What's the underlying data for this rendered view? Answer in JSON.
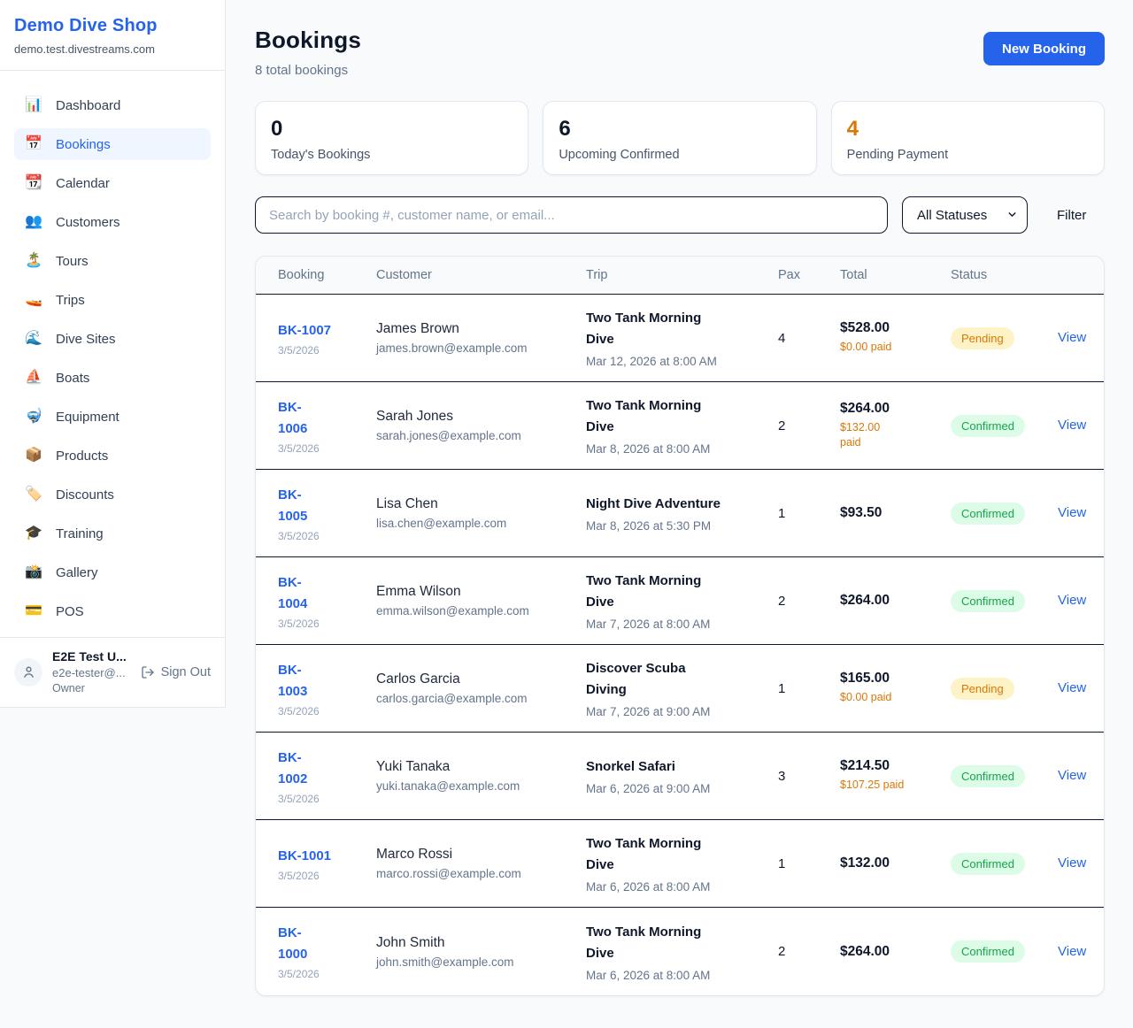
{
  "colors": {
    "accent": "#2563eb",
    "page_bg": "#f8fafc",
    "card_border": "#e2e8f0",
    "row_border": "#0f172a",
    "active_nav_bg": "#eff6ff",
    "pending_bg": "#fef3c7",
    "pending_text": "#d97706",
    "confirmed_bg": "#dcfce7",
    "confirmed_text": "#16a34a",
    "paid_text": "#d97706"
  },
  "sidebar": {
    "shop_name": "Demo Dive Shop",
    "shop_domain": "demo.test.divestreams.com",
    "items": [
      {
        "label": "Dashboard",
        "icon": "📊",
        "icon_name": "bar-chart-icon",
        "active": false
      },
      {
        "label": "Bookings",
        "icon": "📅",
        "icon_name": "calendar-icon",
        "active": true
      },
      {
        "label": "Calendar",
        "icon": "📆",
        "icon_name": "tear-off-calendar-icon",
        "active": false
      },
      {
        "label": "Customers",
        "icon": "👥",
        "icon_name": "people-icon",
        "active": false
      },
      {
        "label": "Tours",
        "icon": "🏝️",
        "icon_name": "island-icon",
        "active": false
      },
      {
        "label": "Trips",
        "icon": "🚤",
        "icon_name": "speedboat-icon",
        "active": false
      },
      {
        "label": "Dive Sites",
        "icon": "🌊",
        "icon_name": "wave-icon",
        "active": false
      },
      {
        "label": "Boats",
        "icon": "⛵",
        "icon_name": "sailboat-icon",
        "active": false
      },
      {
        "label": "Equipment",
        "icon": "🤿",
        "icon_name": "diving-mask-icon",
        "active": false
      },
      {
        "label": "Products",
        "icon": "📦",
        "icon_name": "package-icon",
        "active": false
      },
      {
        "label": "Discounts",
        "icon": "🏷️",
        "icon_name": "tag-icon",
        "active": false
      },
      {
        "label": "Training",
        "icon": "🎓",
        "icon_name": "graduation-cap-icon",
        "active": false
      },
      {
        "label": "Gallery",
        "icon": "📸",
        "icon_name": "camera-icon",
        "active": false
      },
      {
        "label": "POS",
        "icon": "💳",
        "icon_name": "credit-card-icon",
        "active": false
      }
    ],
    "user": {
      "name": "E2E Test U...",
      "email": "e2e-tester@...",
      "role": "Owner",
      "sign_out_label": "Sign Out"
    }
  },
  "header": {
    "title": "Bookings",
    "subtitle": "8 total bookings",
    "new_booking_label": "New Booking"
  },
  "stats": [
    {
      "value": "0",
      "label": "Today's Bookings",
      "highlight": false
    },
    {
      "value": "6",
      "label": "Upcoming Confirmed",
      "highlight": false
    },
    {
      "value": "4",
      "label": "Pending Payment",
      "highlight": true
    }
  ],
  "filters": {
    "search_placeholder": "Search by booking #, customer name, or email...",
    "status_value": "All Statuses",
    "filter_label": "Filter"
  },
  "table": {
    "columns": [
      "Booking",
      "Customer",
      "Trip",
      "Pax",
      "Total",
      "Status"
    ],
    "view_label": "View",
    "rows": [
      {
        "id": "BK-1007",
        "id_wrapped": false,
        "date": "3/5/2026",
        "customer": "James Brown",
        "email": "james.brown@example.com",
        "trip": "Two Tank Morning Dive",
        "trip_wrapped": true,
        "trip_time": "Mar 12, 2026 at 8:00 AM",
        "pax": "4",
        "total": "$528.00",
        "paid": "$0.00 paid",
        "paid_wrapped": false,
        "status": "Pending",
        "status_type": "pending"
      },
      {
        "id": "BK-1006",
        "id_wrapped": true,
        "date": "3/5/2026",
        "customer": "Sarah Jones",
        "email": "sarah.jones@example.com",
        "trip": "Two Tank Morning Dive",
        "trip_wrapped": true,
        "trip_time": "Mar 8, 2026 at 8:00 AM",
        "pax": "2",
        "total": "$264.00",
        "paid": "$132.00 paid",
        "paid_wrapped": true,
        "status": "Confirmed",
        "status_type": "confirmed"
      },
      {
        "id": "BK-1005",
        "id_wrapped": true,
        "date": "3/5/2026",
        "customer": "Lisa Chen",
        "email": "lisa.chen@example.com",
        "trip": "Night Dive Adventure",
        "trip_wrapped": false,
        "trip_time": "Mar 8, 2026 at 5:30 PM",
        "pax": "1",
        "total": "$93.50",
        "paid": null,
        "paid_wrapped": false,
        "status": "Confirmed",
        "status_type": "confirmed"
      },
      {
        "id": "BK-1004",
        "id_wrapped": true,
        "date": "3/5/2026",
        "customer": "Emma Wilson",
        "email": "emma.wilson@example.com",
        "trip": "Two Tank Morning Dive",
        "trip_wrapped": true,
        "trip_time": "Mar 7, 2026 at 8:00 AM",
        "pax": "2",
        "total": "$264.00",
        "paid": null,
        "paid_wrapped": false,
        "status": "Confirmed",
        "status_type": "confirmed"
      },
      {
        "id": "BK-1003",
        "id_wrapped": true,
        "date": "3/5/2026",
        "customer": "Carlos Garcia",
        "email": "carlos.garcia@example.com",
        "trip": "Discover Scuba Diving",
        "trip_wrapped": true,
        "trip_time": "Mar 7, 2026 at 9:00 AM",
        "pax": "1",
        "total": "$165.00",
        "paid": "$0.00 paid",
        "paid_wrapped": false,
        "status": "Pending",
        "status_type": "pending"
      },
      {
        "id": "BK-1002",
        "id_wrapped": true,
        "date": "3/5/2026",
        "customer": "Yuki Tanaka",
        "email": "yuki.tanaka@example.com",
        "trip": "Snorkel Safari",
        "trip_wrapped": false,
        "trip_time": "Mar 6, 2026 at 9:00 AM",
        "pax": "3",
        "total": "$214.50",
        "paid": "$107.25 paid",
        "paid_wrapped": false,
        "status": "Confirmed",
        "status_type": "confirmed"
      },
      {
        "id": "BK-1001",
        "id_wrapped": false,
        "date": "3/5/2026",
        "customer": "Marco Rossi",
        "email": "marco.rossi@example.com",
        "trip": "Two Tank Morning Dive",
        "trip_wrapped": true,
        "trip_time": "Mar 6, 2026 at 8:00 AM",
        "pax": "1",
        "total": "$132.00",
        "paid": null,
        "paid_wrapped": false,
        "status": "Confirmed",
        "status_type": "confirmed"
      },
      {
        "id": "BK-1000",
        "id_wrapped": true,
        "date": "3/5/2026",
        "customer": "John Smith",
        "email": "john.smith@example.com",
        "trip": "Two Tank Morning Dive",
        "trip_wrapped": true,
        "trip_time": "Mar 6, 2026 at 8:00 AM",
        "pax": "2",
        "total": "$264.00",
        "paid": null,
        "paid_wrapped": false,
        "status": "Confirmed",
        "status_type": "confirmed"
      }
    ]
  }
}
